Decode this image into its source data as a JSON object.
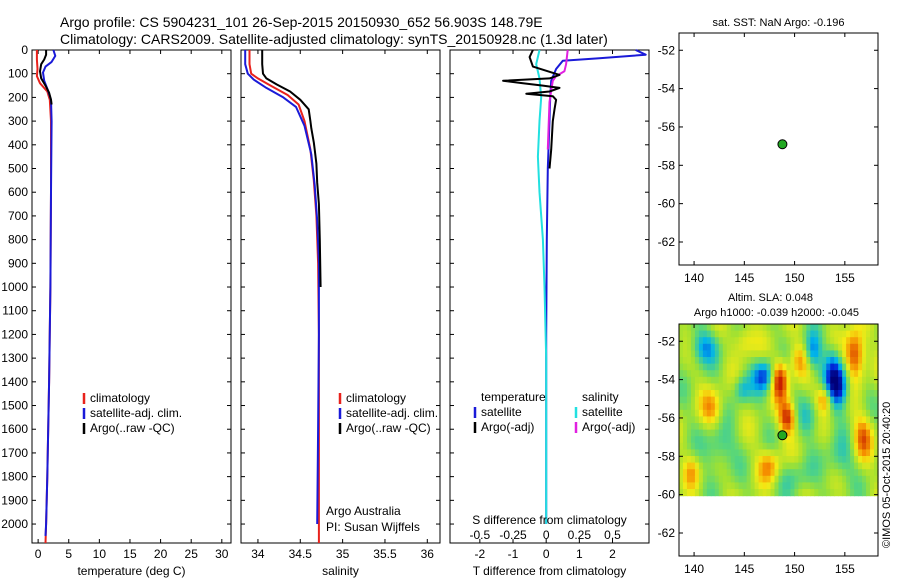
{
  "header": {
    "line1": "Argo profile: CS 5904231_101 26-Sep-2015 20150930_652 56.903S 148.79E",
    "line2": "Climatology: CARS2009. Satellite-adjusted climatology: synTS_20150928.nc (1.3d later)"
  },
  "colors": {
    "climatology": "#e8221c",
    "satellite": "#1a1ad8",
    "argo": "#000000",
    "sal_satellite": "#22e0e0",
    "sal_argo": "#e020e0",
    "marker": "#22a822"
  },
  "chart_data": [
    {
      "id": "temperature",
      "type": "line",
      "xlabel": "temperature (deg C)",
      "ylabel": "",
      "xlim": [
        -1,
        31.5
      ],
      "ylim": [
        0,
        2080
      ],
      "xticks": [
        0,
        5,
        10,
        15,
        20,
        25,
        30
      ],
      "xtick_labels": [
        "0",
        "5",
        "10",
        "15",
        "20",
        "25",
        "30"
      ],
      "yticks": [
        0,
        100,
        200,
        300,
        400,
        500,
        600,
        700,
        800,
        900,
        1000,
        1100,
        1200,
        1300,
        1400,
        1500,
        1600,
        1700,
        1800,
        1900,
        2000
      ],
      "ytick_labels": [
        "0",
        "100",
        "200",
        "300",
        "400",
        "500",
        "600",
        "700",
        "800",
        "900",
        "1000",
        "1100",
        "1200",
        "1300",
        "1400",
        "1500",
        "1600",
        "1700",
        "1800",
        "1900",
        "2000"
      ],
      "legend": [
        "climatology",
        "satellite-adj. clim.",
        "Argo(..raw -QC)"
      ],
      "series": [
        {
          "name": "climatology",
          "color": "climatology",
          "points": [
            [
              -0.2,
              0
            ],
            [
              -0.2,
              40
            ],
            [
              -0.1,
              80
            ],
            [
              -0.2,
              110
            ],
            [
              0.3,
              140
            ],
            [
              1.5,
              175
            ],
            [
              1.9,
              210
            ],
            [
              2.1,
              300
            ],
            [
              2.1,
              600
            ],
            [
              2.0,
              1000
            ],
            [
              1.8,
              1400
            ],
            [
              1.5,
              1800
            ],
            [
              1.3,
              2000
            ],
            [
              1.2,
              2080
            ]
          ]
        },
        {
          "name": "satellite",
          "color": "satellite",
          "points": [
            [
              2.5,
              0
            ],
            [
              2.8,
              25
            ],
            [
              2.2,
              50
            ],
            [
              1.2,
              70
            ],
            [
              0.8,
              95
            ],
            [
              1.0,
              130
            ],
            [
              1.6,
              170
            ],
            [
              2.1,
              210
            ],
            [
              2.2,
              300
            ],
            [
              2.1,
              600
            ],
            [
              2.0,
              1000
            ],
            [
              1.8,
              1400
            ],
            [
              1.5,
              1800
            ],
            [
              1.3,
              2000
            ],
            [
              1.2,
              2050
            ]
          ]
        },
        {
          "name": "Argo",
          "color": "argo",
          "points": [
            [
              1.3,
              0
            ],
            [
              1.3,
              20
            ],
            [
              1.0,
              40
            ],
            [
              0.5,
              60
            ],
            [
              0.3,
              90
            ],
            [
              0.5,
              120
            ],
            [
              1.2,
              150
            ],
            [
              1.8,
              180
            ],
            [
              2.1,
              210
            ],
            [
              2.2,
              230
            ]
          ]
        }
      ]
    },
    {
      "id": "salinity",
      "type": "line",
      "xlabel": "salinity",
      "ylabel": "",
      "xlim": [
        33.8,
        36.15
      ],
      "ylim": [
        0,
        2080
      ],
      "xticks": [
        34,
        34.5,
        35,
        35.5,
        36
      ],
      "xtick_labels": [
        "34",
        "34.5",
        "35",
        "35.5",
        "36"
      ],
      "legend": [
        "climatology",
        "satellite-adj. clim.",
        "Argo(..raw -QC)"
      ],
      "annotation": [
        "Argo Australia",
        "PI: Susan Wijffels"
      ],
      "series": [
        {
          "name": "climatology",
          "color": "climatology",
          "points": [
            [
              33.9,
              0
            ],
            [
              33.9,
              60
            ],
            [
              33.92,
              100
            ],
            [
              34.0,
              120
            ],
            [
              34.15,
              150
            ],
            [
              34.35,
              190
            ],
            [
              34.48,
              230
            ],
            [
              34.55,
              300
            ],
            [
              34.62,
              420
            ],
            [
              34.66,
              550
            ],
            [
              34.69,
              700
            ],
            [
              34.71,
              900
            ],
            [
              34.72,
              1200
            ],
            [
              34.72,
              1600
            ],
            [
              34.72,
              2080
            ]
          ]
        },
        {
          "name": "satellite",
          "color": "satellite",
          "points": [
            [
              33.85,
              0
            ],
            [
              33.85,
              60
            ],
            [
              33.88,
              100
            ],
            [
              33.95,
              125
            ],
            [
              34.1,
              160
            ],
            [
              34.3,
              200
            ],
            [
              34.45,
              240
            ],
            [
              34.55,
              320
            ],
            [
              34.63,
              440
            ],
            [
              34.67,
              570
            ],
            [
              34.7,
              720
            ],
            [
              34.72,
              900
            ],
            [
              34.72,
              1200
            ],
            [
              34.71,
              1600
            ],
            [
              34.7,
              2000
            ]
          ]
        },
        {
          "name": "Argo",
          "color": "argo",
          "points": [
            [
              34.05,
              0
            ],
            [
              34.05,
              60
            ],
            [
              34.06,
              100
            ],
            [
              34.1,
              120
            ],
            [
              34.22,
              145
            ],
            [
              34.38,
              175
            ],
            [
              34.5,
              210
            ],
            [
              34.6,
              250
            ],
            [
              34.62,
              300
            ],
            [
              34.63,
              330
            ],
            [
              34.66,
              390
            ],
            [
              34.67,
              420
            ],
            [
              34.69,
              480
            ],
            [
              34.7,
              560
            ],
            [
              34.72,
              650
            ],
            [
              34.73,
              800
            ],
            [
              34.74,
              1000
            ]
          ]
        }
      ]
    },
    {
      "id": "difference",
      "type": "line",
      "xlabel": "T difference from climatology",
      "xlabel_top": "S difference from climatology",
      "xlim": [
        -2.9,
        3.1
      ],
      "ylim": [
        0,
        2080
      ],
      "xticks": [
        -2,
        -1,
        0,
        1,
        2
      ],
      "xtick_labels": [
        "-2",
        "-1",
        "0",
        "1",
        "2"
      ],
      "s_ticks": [
        -0.5,
        -0.25,
        0,
        0.25,
        0.5
      ],
      "s_tick_labels": [
        "-0.5",
        "-0.25",
        "0",
        "0.25",
        "0.5"
      ],
      "s_scale": 4,
      "legend_left_title": "temperature",
      "legend_left": [
        "satellite",
        "Argo(-adj)"
      ],
      "legend_right_title": "salinity",
      "legend_right": [
        "satellite",
        "Argo(-adj)"
      ],
      "series": [
        {
          "name": "T satellite",
          "color": "satellite",
          "points": [
            [
              2.7,
              0
            ],
            [
              3.0,
              20
            ],
            [
              1.6,
              35
            ],
            [
              0.5,
              45
            ],
            [
              0.3,
              80
            ],
            [
              0.15,
              130
            ],
            [
              0.12,
              200
            ],
            [
              0.1,
              300
            ],
            [
              0.05,
              500
            ],
            [
              0.02,
              800
            ],
            [
              0.0,
              1200
            ],
            [
              0.0,
              1600
            ],
            [
              0.0,
              2000
            ]
          ]
        },
        {
          "name": "S satellite",
          "color": "sal_satellite",
          "points": [
            [
              -0.2,
              0
            ],
            [
              -0.3,
              60
            ],
            [
              -0.2,
              120
            ],
            [
              -0.15,
              200
            ],
            [
              -0.2,
              300
            ],
            [
              -0.25,
              450
            ],
            [
              -0.2,
              600
            ],
            [
              -0.1,
              800
            ],
            [
              -0.05,
              1000
            ],
            [
              0.0,
              1300
            ],
            [
              0.0,
              1700
            ],
            [
              0.0,
              2000
            ]
          ]
        },
        {
          "name": "S Argo",
          "color": "sal_argo",
          "points": [
            [
              0.65,
              0
            ],
            [
              0.6,
              60
            ],
            [
              0.55,
              90
            ],
            [
              0.3,
              110
            ],
            [
              0.2,
              130
            ],
            [
              0.15,
              170
            ],
            [
              0.1,
              220
            ],
            [
              0.08,
              300
            ],
            [
              0.05,
              420
            ]
          ]
        },
        {
          "name": "T Argo",
          "color": "argo",
          "points": [
            [
              -0.4,
              0
            ],
            [
              -0.5,
              30
            ],
            [
              -0.4,
              70
            ],
            [
              0.4,
              105
            ],
            [
              0.1,
              120
            ],
            [
              -1.3,
              130
            ],
            [
              -0.7,
              140
            ],
            [
              -0.1,
              150
            ],
            [
              0.4,
              160
            ],
            [
              0.1,
              175
            ],
            [
              -0.6,
              185
            ],
            [
              0.2,
              195
            ],
            [
              0.3,
              210
            ],
            [
              0.25,
              250
            ],
            [
              0.2,
              300
            ],
            [
              0.15,
              420
            ],
            [
              0.1,
              500
            ]
          ]
        }
      ]
    },
    {
      "id": "sst",
      "type": "scatter",
      "title": "sat. SST: NaN Argo: -0.196",
      "xlim": [
        138.5,
        158.3
      ],
      "ylim": [
        -63.2,
        -51.1
      ],
      "xticks": [
        140,
        145,
        150,
        155
      ],
      "xtick_labels": [
        "140",
        "145",
        "150",
        "155"
      ],
      "yticks": [
        -52,
        -54,
        -56,
        -58,
        -60,
        -62
      ],
      "ytick_labels": [
        "-52",
        "-54",
        "-56",
        "-58",
        "-60",
        "-62"
      ],
      "points": [
        {
          "x": 148.79,
          "y": -56.903
        }
      ]
    },
    {
      "id": "sla",
      "type": "heatmap",
      "title_line1": "Altim. SLA: 0.048",
      "title_line2": "Argo h1000: -0.039 h2000: -0.045",
      "xlim": [
        138.5,
        158.3
      ],
      "ylim": [
        -63.2,
        -51.1
      ],
      "data_ylim": [
        -60.05,
        -51.1
      ],
      "xticks": [
        140,
        145,
        150,
        155
      ],
      "xtick_labels": [
        "140",
        "145",
        "150",
        "155"
      ],
      "yticks": [
        -52,
        -54,
        -56,
        -58,
        -60,
        -62
      ],
      "ytick_labels": [
        "-52",
        "-54",
        "-56",
        "-58",
        "-60",
        "-62"
      ],
      "points": [
        {
          "x": 148.79,
          "y": -56.903
        }
      ],
      "features": [
        {
          "lon": 154.2,
          "lat": -54.3,
          "amp": -1.5,
          "slon": 0.8,
          "slat": 0.8
        },
        {
          "lon": 153.8,
          "lat": -53.0,
          "amp": -0.5,
          "slon": 0.6,
          "slat": 0.6
        },
        {
          "lon": 151.8,
          "lat": -52.6,
          "amp": -0.8,
          "slon": 0.6,
          "slat": 0.7
        },
        {
          "lon": 147.0,
          "lat": -53.8,
          "amp": -1.0,
          "slon": 0.8,
          "slat": 0.6
        },
        {
          "lon": 144.8,
          "lat": -54.5,
          "amp": -0.6,
          "slon": 0.6,
          "slat": 0.5
        },
        {
          "lon": 141.0,
          "lat": -52.3,
          "amp": -0.7,
          "slon": 1.0,
          "slat": 0.6
        },
        {
          "lon": 142.5,
          "lat": -57.5,
          "amp": -0.5,
          "slon": 1.0,
          "slat": 0.8
        },
        {
          "lon": 151.5,
          "lat": -56.0,
          "amp": -0.4,
          "slon": 0.8,
          "slat": 0.7
        },
        {
          "lon": 154.5,
          "lat": -58.2,
          "amp": -0.4,
          "slon": 1.0,
          "slat": 0.8
        },
        {
          "lon": 150.0,
          "lat": -59.0,
          "amp": -0.3,
          "slon": 1.2,
          "slat": 0.6
        },
        {
          "lon": 156.0,
          "lat": -52.7,
          "amp": 1.2,
          "slon": 0.7,
          "slat": 0.9
        },
        {
          "lon": 148.5,
          "lat": -54.0,
          "amp": 1.3,
          "slon": 0.6,
          "slat": 0.7
        },
        {
          "lon": 149.3,
          "lat": -56.0,
          "amp": 1.1,
          "slon": 0.6,
          "slat": 0.6
        },
        {
          "lon": 153.0,
          "lat": -55.0,
          "amp": 0.9,
          "slon": 0.6,
          "slat": 0.5
        },
        {
          "lon": 147.5,
          "lat": -58.5,
          "amp": 0.7,
          "slon": 0.8,
          "slat": 0.6
        },
        {
          "lon": 150.5,
          "lat": -53.0,
          "amp": 0.6,
          "slon": 0.7,
          "slat": 0.6
        },
        {
          "lon": 141.8,
          "lat": -55.5,
          "amp": 0.6,
          "slon": 0.8,
          "slat": 0.7
        },
        {
          "lon": 156.8,
          "lat": -57.0,
          "amp": 0.8,
          "slon": 0.7,
          "slat": 0.8
        },
        {
          "lon": 145.0,
          "lat": -52.0,
          "amp": 0.5,
          "slon": 0.8,
          "slat": 0.6
        },
        {
          "lon": 139.8,
          "lat": -58.8,
          "amp": 0.5,
          "slon": 0.6,
          "slat": 0.6
        }
      ]
    }
  ],
  "watermark": "©IMOS 05-Oct-2015 20:40:20"
}
